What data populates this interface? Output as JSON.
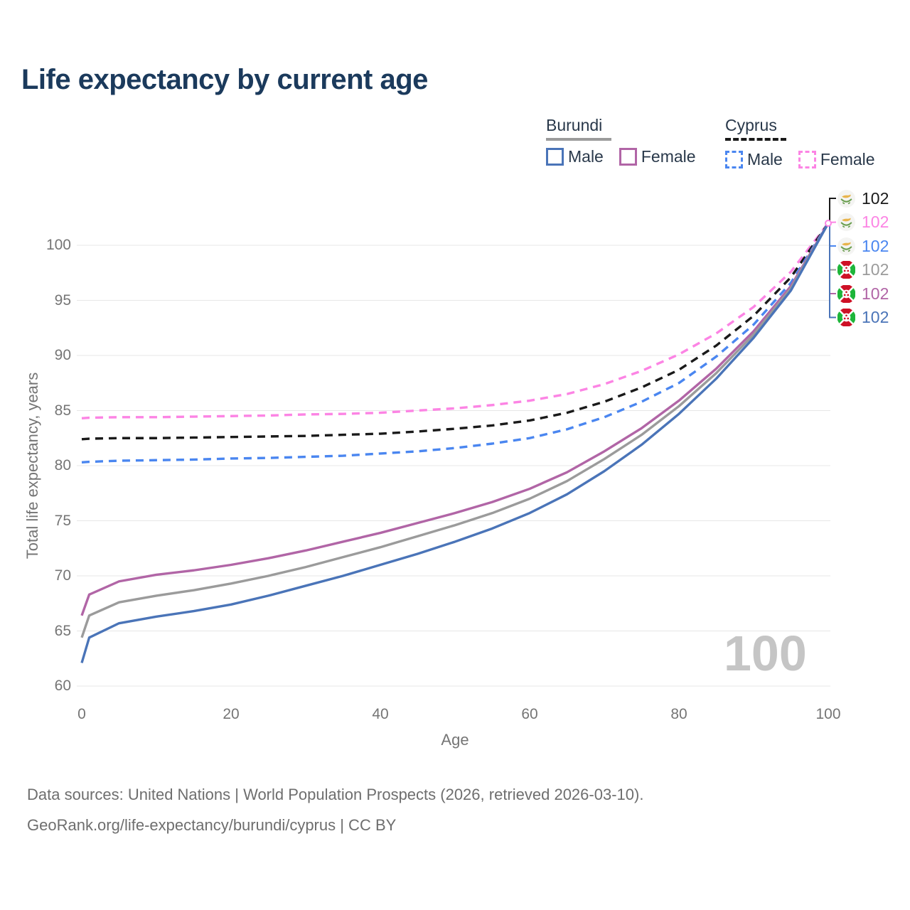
{
  "title": "Life expectancy by current age",
  "legend": {
    "groups": [
      {
        "country": "Burundi",
        "line_style": "solid",
        "underline_color": "#9b9b9b",
        "items": [
          {
            "label": "Male",
            "color": "#4a74b8"
          },
          {
            "label": "Female",
            "color": "#b165a6"
          }
        ]
      },
      {
        "country": "Cyprus",
        "line_style": "dashed",
        "underline_color": "#1a1a1a",
        "items": [
          {
            "label": "Male",
            "color": "#4a86f0"
          },
          {
            "label": "Female",
            "color": "#fc84e4"
          }
        ]
      }
    ]
  },
  "chart_data": {
    "type": "line",
    "title": "Life expectancy by current age",
    "xlabel": "Age",
    "ylabel": "Total life expectancy, years",
    "xlim": [
      0,
      100
    ],
    "ylim": [
      60,
      103
    ],
    "xticks": [
      0,
      20,
      40,
      60,
      80,
      100
    ],
    "yticks": [
      100,
      95,
      90,
      85,
      80,
      75,
      70,
      65,
      60
    ],
    "grid": "horizontal",
    "legend_position": "top-right",
    "x": [
      0,
      1,
      5,
      10,
      15,
      20,
      25,
      30,
      35,
      40,
      45,
      50,
      55,
      60,
      65,
      70,
      75,
      80,
      85,
      90,
      95,
      100
    ],
    "series": [
      {
        "id": "cyprus-female",
        "name": "Cyprus Female",
        "country": "Cyprus",
        "sex": "Female",
        "style": "dashed",
        "color": "#fc84e4",
        "values": [
          84.3,
          84.35,
          84.4,
          84.4,
          84.45,
          84.5,
          84.55,
          84.65,
          84.7,
          84.8,
          85.0,
          85.2,
          85.5,
          85.9,
          86.5,
          87.4,
          88.6,
          90.1,
          92.0,
          94.4,
          97.6,
          102
        ]
      },
      {
        "id": "cyprus-total",
        "name": "Cyprus",
        "country": "Cyprus",
        "sex": "Both",
        "style": "dashed",
        "color": "#1a1a1a",
        "values": [
          82.4,
          82.45,
          82.5,
          82.5,
          82.55,
          82.6,
          82.65,
          82.7,
          82.8,
          82.9,
          83.1,
          83.35,
          83.65,
          84.1,
          84.8,
          85.8,
          87.1,
          88.7,
          90.9,
          93.6,
          97.1,
          102
        ]
      },
      {
        "id": "cyprus-male",
        "name": "Cyprus Male",
        "country": "Cyprus",
        "sex": "Male",
        "style": "dashed",
        "color": "#4a86f0",
        "values": [
          80.3,
          80.35,
          80.45,
          80.5,
          80.55,
          80.65,
          80.7,
          80.8,
          80.9,
          81.1,
          81.3,
          81.6,
          82.0,
          82.5,
          83.3,
          84.4,
          85.8,
          87.5,
          89.9,
          92.8,
          96.6,
          102
        ]
      },
      {
        "id": "burundi-female",
        "name": "Burundi Female",
        "country": "Burundi",
        "sex": "Female",
        "style": "solid",
        "color": "#b165a6",
        "values": [
          66.4,
          68.3,
          69.5,
          70.1,
          70.5,
          71.0,
          71.6,
          72.3,
          73.1,
          73.9,
          74.8,
          75.7,
          76.7,
          77.9,
          79.4,
          81.3,
          83.4,
          85.9,
          88.8,
          92.2,
          96.3,
          102
        ]
      },
      {
        "id": "burundi-total",
        "name": "Burundi",
        "country": "Burundi",
        "sex": "Both",
        "style": "solid",
        "color": "#9b9b9b",
        "values": [
          64.4,
          66.4,
          67.6,
          68.2,
          68.7,
          69.3,
          70.0,
          70.8,
          71.7,
          72.6,
          73.6,
          74.6,
          75.7,
          77.0,
          78.6,
          80.6,
          82.8,
          85.4,
          88.4,
          91.9,
          96.1,
          102
        ]
      },
      {
        "id": "burundi-male",
        "name": "Burundi Male",
        "country": "Burundi",
        "sex": "Male",
        "style": "solid",
        "color": "#4a74b8",
        "values": [
          62.1,
          64.4,
          65.7,
          66.3,
          66.8,
          67.4,
          68.2,
          69.1,
          70.0,
          71.0,
          72.0,
          73.1,
          74.3,
          75.7,
          77.4,
          79.5,
          81.9,
          84.7,
          87.9,
          91.6,
          95.9,
          102
        ]
      }
    ]
  },
  "end_labels": [
    {
      "series": "cyprus-total",
      "flag": "cyprus",
      "value": "102",
      "color": "#1a1a1a"
    },
    {
      "series": "cyprus-female",
      "flag": "cyprus",
      "value": "102",
      "color": "#fc84e4"
    },
    {
      "series": "cyprus-male",
      "flag": "cyprus",
      "value": "102",
      "color": "#4a86f0"
    },
    {
      "series": "burundi-total",
      "flag": "burundi",
      "value": "102",
      "color": "#9b9b9b"
    },
    {
      "series": "burundi-female",
      "flag": "burundi",
      "value": "102",
      "color": "#b165a6"
    },
    {
      "series": "burundi-male",
      "flag": "burundi",
      "value": "102",
      "color": "#4a74b8"
    }
  ],
  "watermark": "100",
  "footer": {
    "line1": "Data sources: United Nations | World Population Prospects (2026, retrieved 2026-03-10).",
    "line2": "GeoRank.org/life-expectancy/burundi/cyprus | CC BY"
  }
}
